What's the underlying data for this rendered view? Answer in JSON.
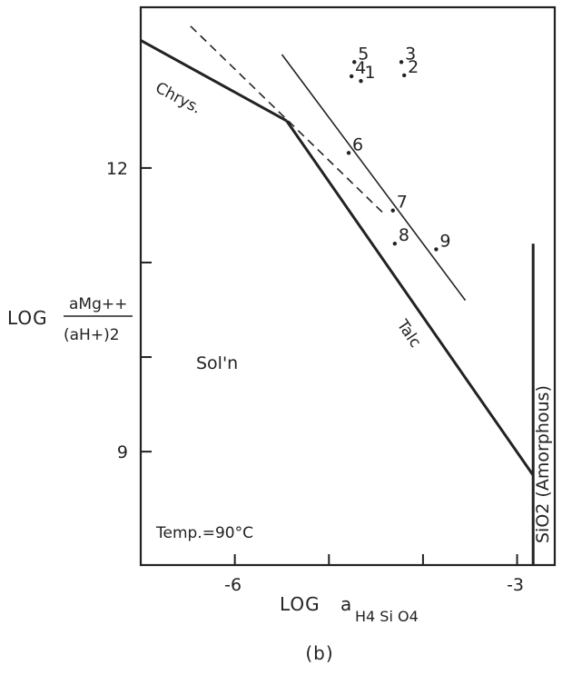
{
  "chart_data": {
    "type": "scatter",
    "subfigure_label": "(b)",
    "x_axis": {
      "label_prefix": "LOG",
      "label_symbol": "a",
      "label_subscript": "H4 Si O4",
      "range": [
        -7.0,
        -2.6
      ],
      "ticks": [
        {
          "value": -6,
          "label": "-6"
        },
        {
          "value": -3,
          "label": "-3"
        }
      ],
      "minor_ticks": [
        -5,
        -4
      ]
    },
    "y_axis": {
      "label_prefix": "LOG",
      "numerator": "aMg++",
      "denominator": "(aH+)2",
      "range": [
        7.8,
        13.7
      ],
      "ticks": [
        {
          "value": 12,
          "label": "12"
        },
        {
          "value": 9,
          "label": "9"
        }
      ],
      "minor_ticks": [
        11,
        10
      ]
    },
    "regions": [
      {
        "label": "Sol'n"
      }
    ],
    "annotations": [
      {
        "text": "Temp.=90°C"
      }
    ],
    "boundaries": [
      {
        "name": "Chrys.",
        "style": "thick",
        "points": [
          [
            -7.0,
            13.35
          ],
          [
            -5.45,
            12.5
          ]
        ]
      },
      {
        "name": "Talc",
        "style": "thick",
        "points": [
          [
            -5.45,
            12.5
          ],
          [
            -2.83,
            8.75
          ]
        ]
      },
      {
        "name": "SiO2 (Amorphous)",
        "style": "thick",
        "points": [
          [
            -2.83,
            7.8
          ],
          [
            -2.83,
            11.2
          ]
        ]
      },
      {
        "name": "",
        "style": "dashed",
        "points": [
          [
            -6.47,
            13.5
          ],
          [
            -4.4,
            11.5
          ]
        ]
      },
      {
        "name": "",
        "style": "thin",
        "points": [
          [
            -5.5,
            13.2
          ],
          [
            -3.55,
            10.6
          ]
        ]
      }
    ],
    "points": [
      {
        "label": "1",
        "x": -4.66,
        "y": 12.92
      },
      {
        "label": "2",
        "x": -4.2,
        "y": 12.98
      },
      {
        "label": "3",
        "x": -4.23,
        "y": 13.12
      },
      {
        "label": "4",
        "x": -4.76,
        "y": 12.97
      },
      {
        "label": "5",
        "x": -4.73,
        "y": 13.12
      },
      {
        "label": "6",
        "x": -4.79,
        "y": 12.16
      },
      {
        "label": "7",
        "x": -4.32,
        "y": 11.55
      },
      {
        "label": "8",
        "x": -4.3,
        "y": 11.2
      },
      {
        "label": "9",
        "x": -3.86,
        "y": 11.14
      }
    ]
  }
}
